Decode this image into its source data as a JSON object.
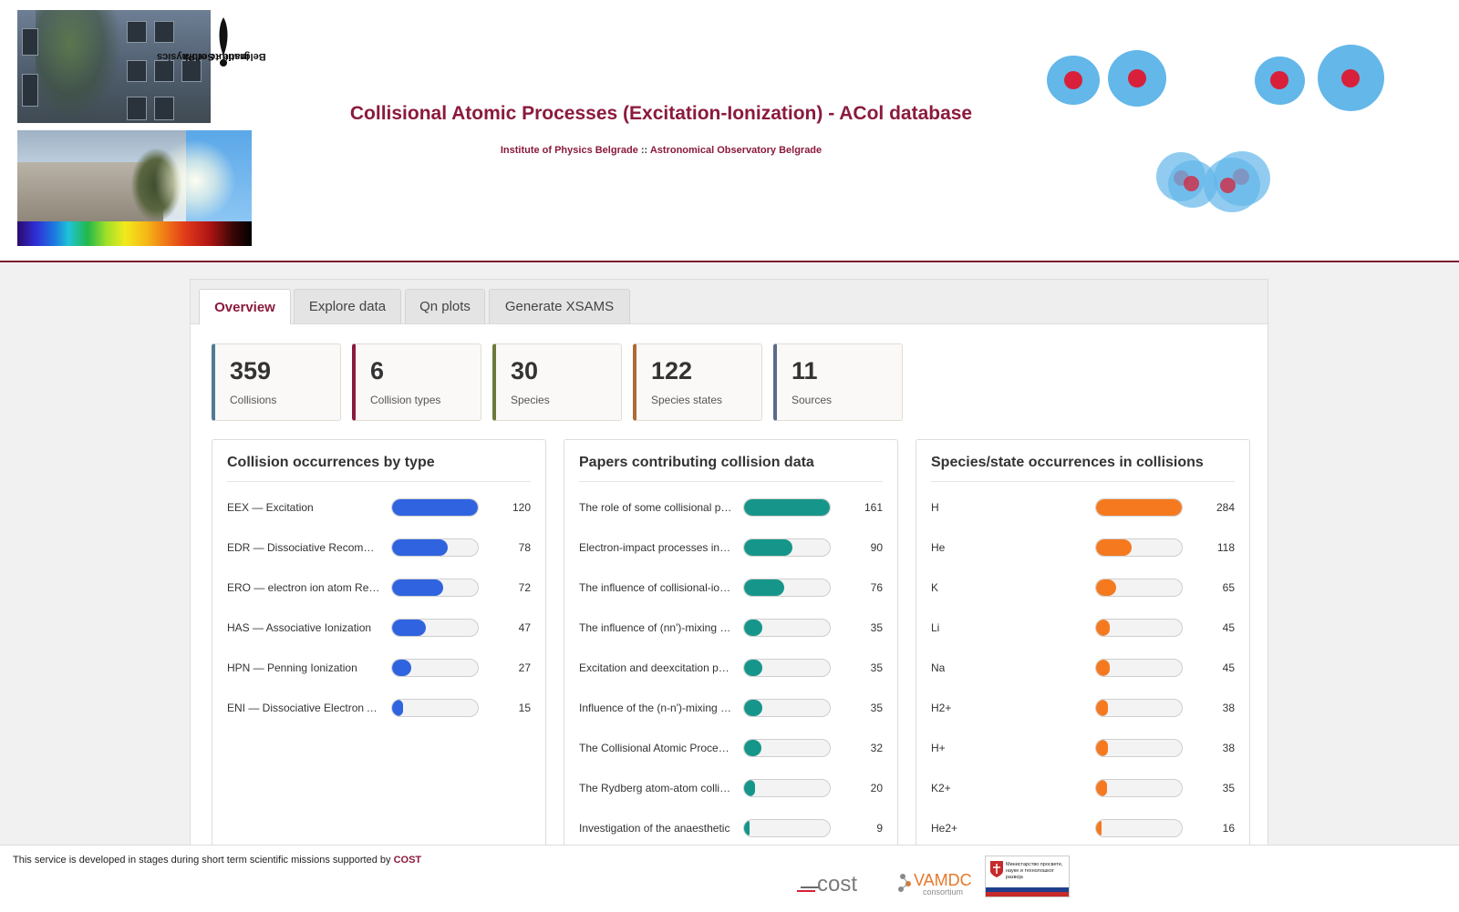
{
  "header": {
    "title": "Collisional Atomic Processes (Excitation-Ionization) - ACol database",
    "subtitle_left": "Institute of Physics Belgrade",
    "subtitle_sep": "::",
    "subtitle_right": "Astronomical Observatory Belgrade",
    "photo_sign_line1": "Institute of Physics",
    "photo_sign_line2": "Belgrade - Serbia"
  },
  "tabs": [
    {
      "label": "Overview",
      "active": true
    },
    {
      "label": "Explore data",
      "active": false
    },
    {
      "label": "Qn plots",
      "active": false
    },
    {
      "label": "Generate XSAMS",
      "active": false
    }
  ],
  "stats": [
    {
      "value": "359",
      "label": "Collisions",
      "color": "#4d7c93"
    },
    {
      "value": "6",
      "label": "Collision types",
      "color": "#8b1a3c"
    },
    {
      "value": "30",
      "label": "Species",
      "color": "#6a7a3c"
    },
    {
      "value": "122",
      "label": "Species states",
      "color": "#b06a32"
    },
    {
      "value": "11",
      "label": "Sources",
      "color": "#5a6b8a"
    }
  ],
  "cards": [
    {
      "title": "Collision occurrences by type",
      "color": "#2f63e0",
      "max": 120,
      "rows": [
        {
          "name": "EEX — Excitation",
          "count": 120
        },
        {
          "name": "EDR — Dissociative Recombination",
          "count": 78
        },
        {
          "name": "ERO — electron ion atom Recombination",
          "count": 72
        },
        {
          "name": "HAS — Associative Ionization",
          "count": 47
        },
        {
          "name": "HPN — Penning Ionization",
          "count": 27
        },
        {
          "name": "ENI — Dissociative Electron Attachment",
          "count": 15
        }
      ]
    },
    {
      "title": "Papers contributing collision data",
      "color": "#16968a",
      "max": 161,
      "rows": [
        {
          "name": "The role of some collisional processes",
          "count": 161
        },
        {
          "name": "Electron-impact processes in hydrogen",
          "count": 90
        },
        {
          "name": "The influence of collisional-ionization",
          "count": 76
        },
        {
          "name": "The influence of (nn')-mixing processes",
          "count": 35
        },
        {
          "name": "Excitation and deexcitation processes",
          "count": 35
        },
        {
          "name": "Influence of the (n-n')-mixing processes",
          "count": 35
        },
        {
          "name": "The Collisional Atomic Processes",
          "count": 32
        },
        {
          "name": "The Rydberg atom-atom collisions",
          "count": 20
        },
        {
          "name": "Investigation of the anaesthetic",
          "count": 9
        }
      ]
    },
    {
      "title": "Species/state occurrences in collisions",
      "color": "#f57a1f",
      "max": 284,
      "rows": [
        {
          "name": "H",
          "count": 284
        },
        {
          "name": "He",
          "count": 118
        },
        {
          "name": "K",
          "count": 65
        },
        {
          "name": "Li",
          "count": 45
        },
        {
          "name": "Na",
          "count": 45
        },
        {
          "name": "H2+",
          "count": 38
        },
        {
          "name": "H+",
          "count": 38
        },
        {
          "name": "K2+",
          "count": 35
        },
        {
          "name": "He2+",
          "count": 16
        }
      ]
    }
  ],
  "footer": {
    "text": "This service is developed in stages during short term scientific missions supported by",
    "link": "COST",
    "logo_cost": "cost",
    "logo_vamdc": "VAMDC",
    "logo_vamdc_sub": "consortium",
    "logo_serbia": "Министарство просвете, науке и технолошког развоја"
  },
  "icons": [
    "atom-icon",
    "cost-logo",
    "vamdc-logo",
    "serbia-ministry-logo"
  ]
}
